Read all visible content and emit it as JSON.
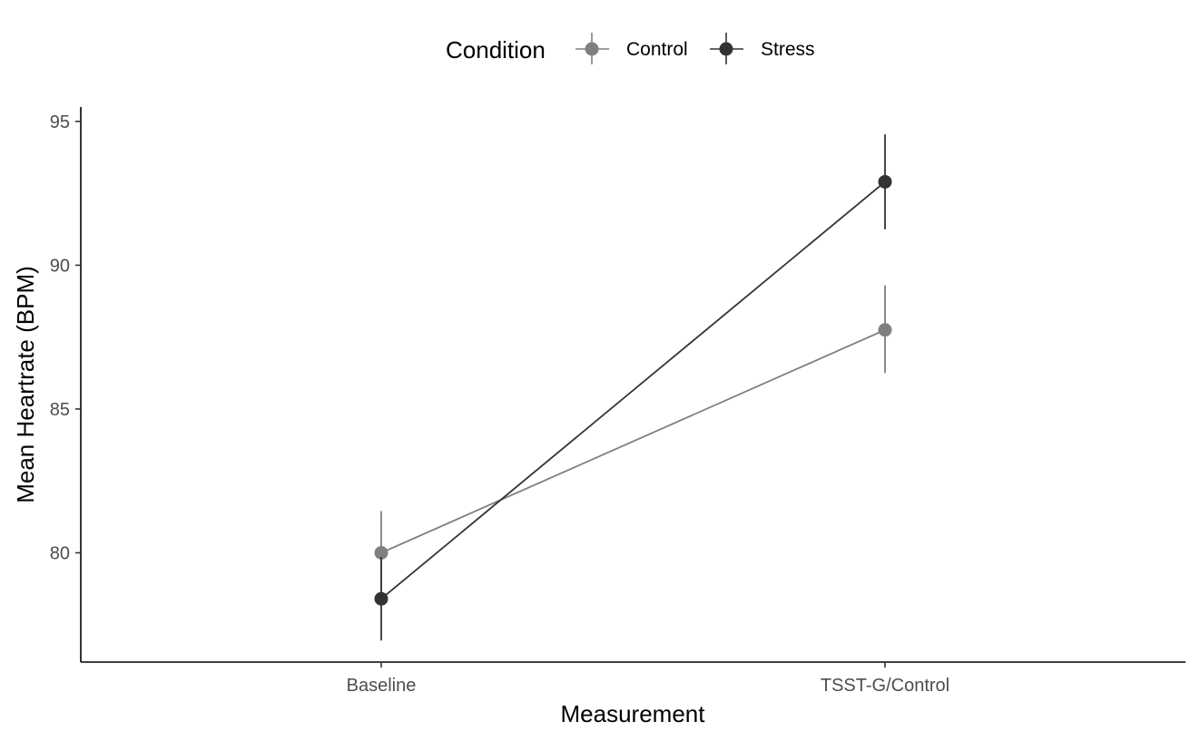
{
  "chart_data": {
    "type": "line",
    "title": "",
    "xlabel": "Measurement",
    "ylabel": "Mean Heartrate (BPM)",
    "categories": [
      "Baseline",
      "TSST-G/Control"
    ],
    "ylim": [
      76.2,
      95.5
    ],
    "yticks": [
      80,
      85,
      90,
      95
    ],
    "grid": false,
    "error_bars": true,
    "legend": {
      "title": "Condition",
      "position": "top"
    },
    "series": [
      {
        "name": "Control",
        "color": "#808080",
        "values": [
          80.0,
          87.75
        ],
        "error_low": [
          78.55,
          86.25
        ],
        "error_high": [
          81.45,
          89.3
        ]
      },
      {
        "name": "Stress",
        "color": "#333333",
        "values": [
          78.4,
          92.9
        ],
        "error_low": [
          76.95,
          91.25
        ],
        "error_high": [
          79.85,
          94.55
        ]
      }
    ]
  }
}
